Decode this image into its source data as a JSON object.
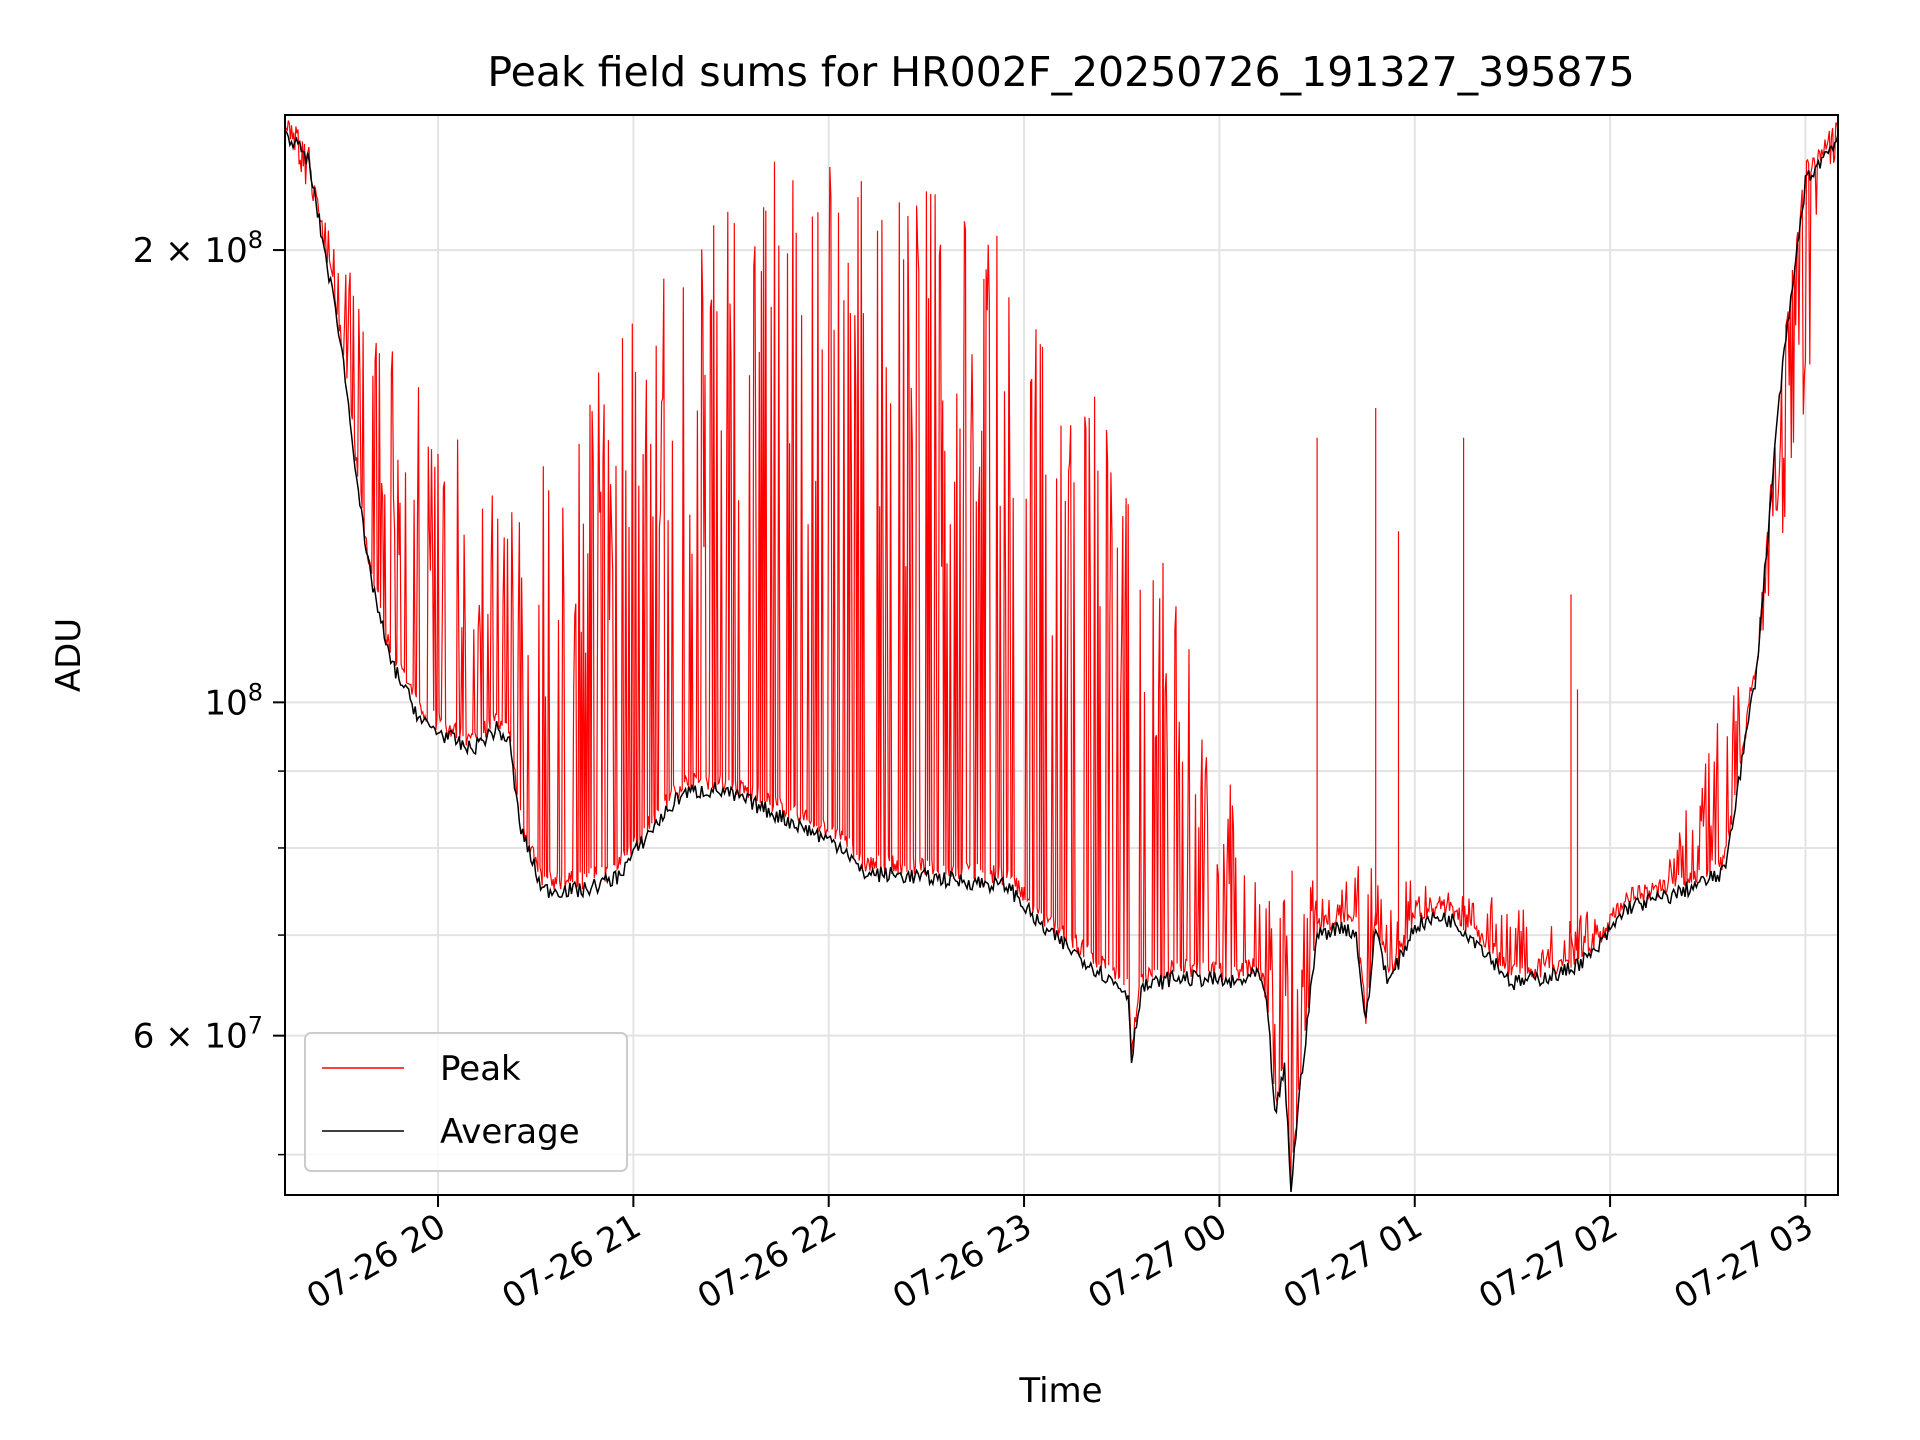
{
  "chart_data": {
    "type": "line",
    "title": "Peak field sums for HR002F_20250726_191327_395875",
    "xlabel": "Time",
    "ylabel": "ADU",
    "y_scale": "log",
    "xlim": [
      "2025-07-26 19:13",
      "2025-07-27 03:10"
    ],
    "ylim": [
      47000000,
      246000000
    ],
    "x_ticks": [
      {
        "value": "2025-07-26 20:00",
        "label": "07-26 20"
      },
      {
        "value": "2025-07-26 21:00",
        "label": "07-26 21"
      },
      {
        "value": "2025-07-26 22:00",
        "label": "07-26 22"
      },
      {
        "value": "2025-07-26 23:00",
        "label": "07-26 23"
      },
      {
        "value": "2025-07-27 00:00",
        "label": "07-27 00"
      },
      {
        "value": "2025-07-27 01:00",
        "label": "07-27 01"
      },
      {
        "value": "2025-07-27 02:00",
        "label": "07-27 02"
      },
      {
        "value": "2025-07-27 03:00",
        "label": "07-27 03"
      }
    ],
    "y_major_ticks": [
      {
        "value": 60000000,
        "label": "6 × 10",
        "exp": "7"
      },
      {
        "value": 100000000,
        "label": "10",
        "exp": "8"
      },
      {
        "value": 200000000,
        "label": "2 × 10",
        "exp": "8"
      }
    ],
    "y_minor_ticks": [
      50000000,
      70000000,
      80000000,
      90000000
    ],
    "grid": true,
    "legend": {
      "placement": "lower-left",
      "entries": [
        {
          "name": "Peak",
          "color": "#ff0000"
        },
        {
          "name": "Average",
          "color": "#000000"
        }
      ]
    },
    "series": [
      {
        "name": "Average",
        "color": "#000000",
        "points": [
          [
            "2025-07-26 19:13",
            240000000
          ],
          [
            "2025-07-26 19:20",
            230000000
          ],
          [
            "2025-07-26 19:30",
            175000000
          ],
          [
            "2025-07-26 19:38",
            125000000
          ],
          [
            "2025-07-26 19:45",
            107000000
          ],
          [
            "2025-07-26 19:55",
            97000000
          ],
          [
            "2025-07-26 20:10",
            93000000
          ],
          [
            "2025-07-26 20:18",
            96000000
          ],
          [
            "2025-07-26 20:22",
            94000000
          ],
          [
            "2025-07-26 20:25",
            83000000
          ],
          [
            "2025-07-26 20:32",
            75000000
          ],
          [
            "2025-07-26 20:45",
            75000000
          ],
          [
            "2025-07-26 20:55",
            76500000
          ],
          [
            "2025-07-26 21:05",
            82000000
          ],
          [
            "2025-07-26 21:15",
            87000000
          ],
          [
            "2025-07-26 21:25",
            87500000
          ],
          [
            "2025-07-26 21:35",
            86000000
          ],
          [
            "2025-07-26 21:50",
            83000000
          ],
          [
            "2025-07-26 22:05",
            80000000
          ],
          [
            "2025-07-26 22:10",
            77000000
          ],
          [
            "2025-07-26 22:30",
            76500000
          ],
          [
            "2025-07-26 22:55",
            75500000
          ],
          [
            "2025-07-26 23:05",
            71000000
          ],
          [
            "2025-07-26 23:20",
            67000000
          ],
          [
            "2025-07-26 23:32",
            64000000
          ],
          [
            "2025-07-26 23:33",
            58000000
          ],
          [
            "2025-07-26 23:36",
            64500000
          ],
          [
            "2025-07-26 23:45",
            65500000
          ],
          [
            "2025-07-26 23:55",
            65500000
          ],
          [
            "2025-07-27 00:05",
            65000000
          ],
          [
            "2025-07-27 00:12",
            66000000
          ],
          [
            "2025-07-27 00:15",
            62000000
          ],
          [
            "2025-07-27 00:17",
            53000000
          ],
          [
            "2025-07-27 00:20",
            57000000
          ],
          [
            "2025-07-27 00:22",
            47500000
          ],
          [
            "2025-07-27 00:25",
            56000000
          ],
          [
            "2025-07-27 00:30",
            70000000
          ],
          [
            "2025-07-27 00:38",
            71000000
          ],
          [
            "2025-07-27 00:42",
            70000000
          ],
          [
            "2025-07-27 00:45",
            61000000
          ],
          [
            "2025-07-27 00:48",
            71000000
          ],
          [
            "2025-07-27 00:52",
            65000000
          ],
          [
            "2025-07-27 01:00",
            71000000
          ],
          [
            "2025-07-27 01:08",
            72000000
          ],
          [
            "2025-07-27 01:12",
            71500000
          ],
          [
            "2025-07-27 01:20",
            69000000
          ],
          [
            "2025-07-27 01:30",
            65000000
          ],
          [
            "2025-07-27 01:45",
            66000000
          ],
          [
            "2025-07-27 01:55",
            68000000
          ],
          [
            "2025-07-27 02:05",
            73000000
          ],
          [
            "2025-07-27 02:20",
            74500000
          ],
          [
            "2025-07-27 02:35",
            77000000
          ],
          [
            "2025-07-27 02:45",
            105000000
          ],
          [
            "2025-07-27 02:52",
            160000000
          ],
          [
            "2025-07-27 03:00",
            222000000
          ],
          [
            "2025-07-27 03:10",
            238000000
          ]
        ]
      },
      {
        "name": "Peak",
        "color": "#ff0000",
        "points": [
          [
            "2025-07-26 19:13",
            242000000
          ],
          [
            "2025-07-26 19:45",
            160000000
          ],
          [
            "2025-07-26 20:15",
            130000000
          ],
          [
            "2025-07-26 20:45",
            140000000
          ],
          [
            "2025-07-26 21:15",
            180000000
          ],
          [
            "2025-07-26 21:45",
            200000000
          ],
          [
            "2025-07-26 22:15",
            190000000
          ],
          [
            "2025-07-26 22:45",
            185000000
          ],
          [
            "2025-07-26 23:15",
            150000000
          ],
          [
            "2025-07-26 23:45",
            110000000
          ],
          [
            "2025-07-27 00:15",
            72000000
          ],
          [
            "2025-07-27 00:45",
            76000000
          ],
          [
            "2025-07-27 01:15",
            74000000
          ],
          [
            "2025-07-27 01:45",
            70000000
          ],
          [
            "2025-07-27 02:15",
            75500000
          ],
          [
            "2025-07-27 02:45",
            106000000
          ],
          [
            "2025-07-27 03:10",
            239000000
          ]
        ],
        "labeled_spikes": [
          [
            "2025-07-27 00:30",
            150000000
          ],
          [
            "2025-07-27 00:48",
            157000000
          ],
          [
            "2025-07-27 00:55",
            130000000
          ],
          [
            "2025-07-27 01:15",
            150000000
          ],
          [
            "2025-07-27 01:48",
            118000000
          ],
          [
            "2025-07-27 01:50",
            102000000
          ]
        ]
      }
    ]
  }
}
